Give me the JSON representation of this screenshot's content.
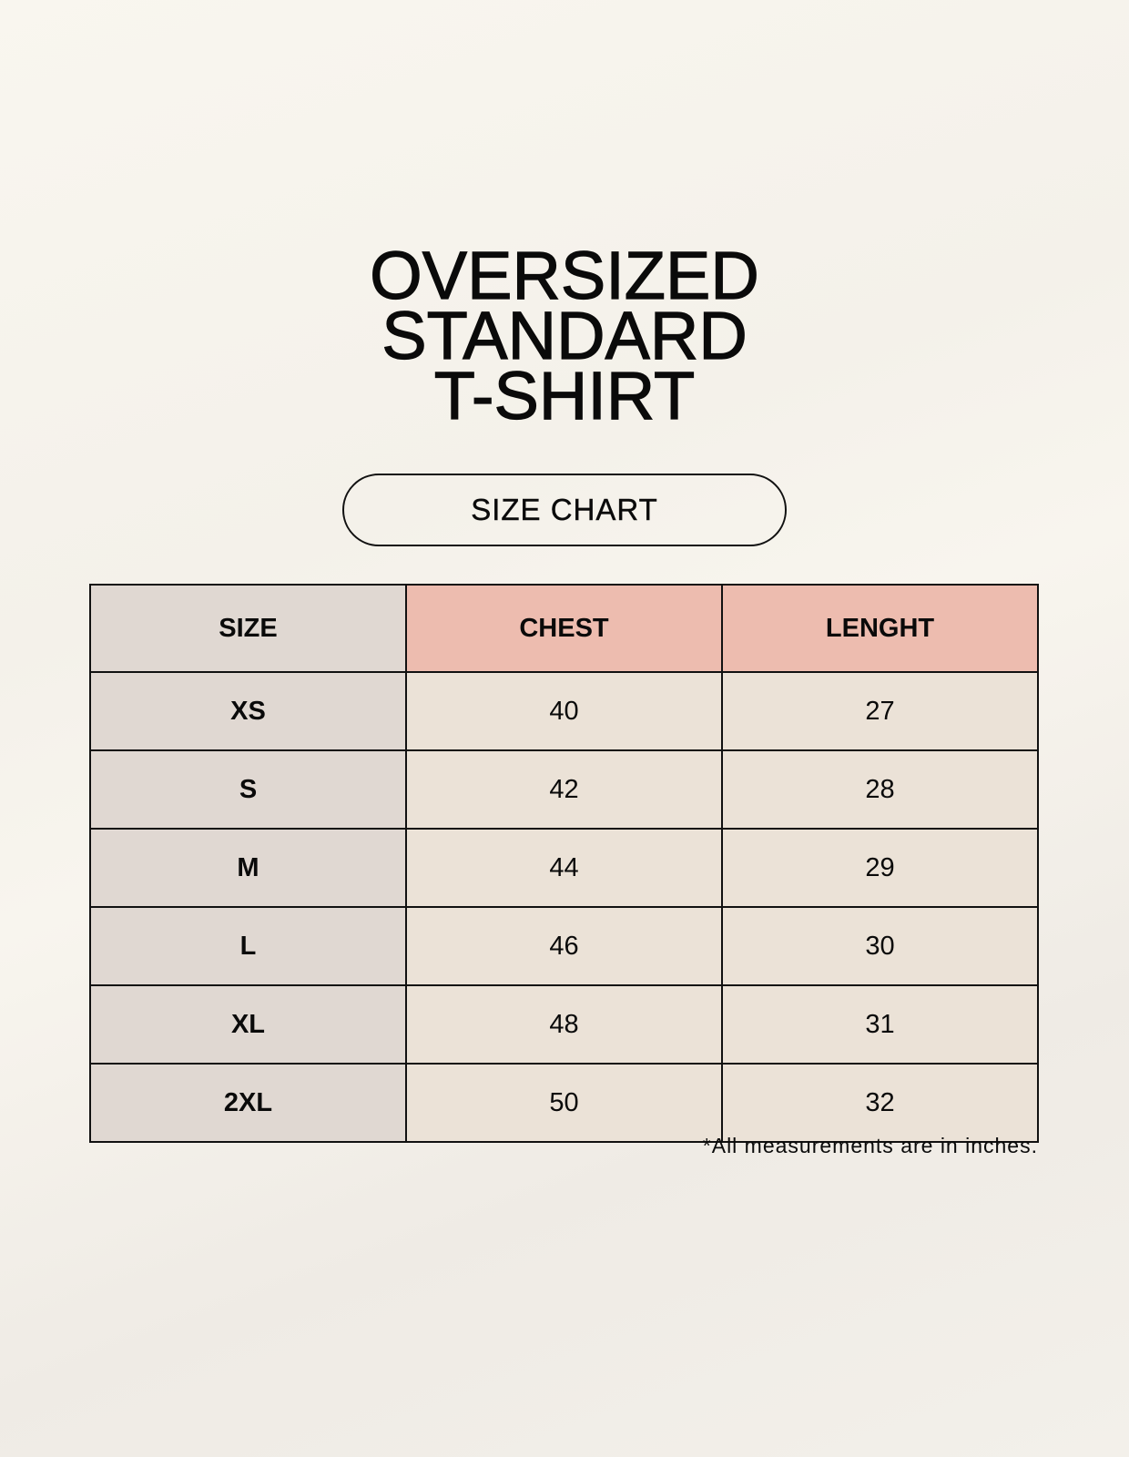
{
  "title": {
    "line1": "OVERSIZED",
    "line2": "STANDARD",
    "line3": "T-SHIRT"
  },
  "badge": "SIZE CHART",
  "table": {
    "headers": [
      "SIZE",
      "CHEST",
      "LENGHT"
    ],
    "rows": [
      [
        "XS",
        "40",
        "27"
      ],
      [
        "S",
        "42",
        "28"
      ],
      [
        "M",
        "44",
        "29"
      ],
      [
        "L",
        "46",
        "30"
      ],
      [
        "XL",
        "48",
        "31"
      ],
      [
        "2XL",
        "50",
        "32"
      ]
    ]
  },
  "note": "*All measurements are in inches.",
  "colors": {
    "size_column": "#e0d8d2",
    "header_accent": "#edbcaf",
    "cell": "#ebe2d7"
  }
}
